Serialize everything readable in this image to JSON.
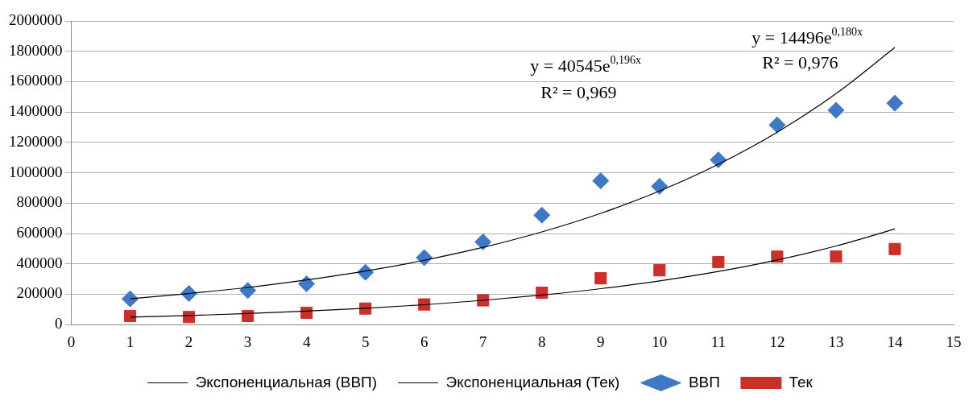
{
  "chart_data": {
    "type": "scatter",
    "x": [
      1,
      2,
      3,
      4,
      5,
      6,
      7,
      8,
      9,
      10,
      11,
      12,
      13,
      14
    ],
    "series": [
      {
        "name": "ВВП",
        "type": "scatter",
        "marker": "diamond",
        "color": "#3f78c4",
        "values": [
          170000,
          205000,
          225000,
          269000,
          345000,
          441000,
          545000,
          721000,
          947000,
          911000,
          1085000,
          1315000,
          1412000,
          1458000
        ]
      },
      {
        "name": "Тек",
        "type": "scatter",
        "marker": "square",
        "color": "#c9302c",
        "values": [
          57000,
          50000,
          57000,
          78000,
          106000,
          133000,
          160000,
          210000,
          305000,
          358000,
          412000,
          448000,
          448000,
          498000
        ]
      },
      {
        "name": "Экспоненциальная (ВВП)",
        "type": "line",
        "marker": "none",
        "color": "#000000",
        "values": [
          170000,
          205000,
          245000,
          295000,
          353000,
          424000,
          509000,
          611000,
          733000,
          880000,
          1056000,
          1267000,
          1521000,
          1825000
        ]
      },
      {
        "name": "Экспоненциальная (Тек)",
        "type": "line",
        "marker": "none",
        "color": "#000000",
        "values": [
          49000,
          60000,
          73000,
          89000,
          108000,
          131000,
          160000,
          195000,
          237000,
          288000,
          350000,
          426000,
          518000,
          630000
        ]
      }
    ],
    "xlim": [
      0,
      15
    ],
    "xticks": [
      0,
      1,
      2,
      3,
      4,
      5,
      6,
      7,
      8,
      9,
      10,
      11,
      12,
      13,
      14,
      15
    ],
    "ylim": [
      0,
      2000000
    ],
    "yticks": [
      0,
      200000,
      400000,
      600000,
      800000,
      1000000,
      1200000,
      1400000,
      1600000,
      1800000,
      2000000
    ],
    "grid": "y",
    "legend": "bottom",
    "annotations": [
      "y = 40545e$^{0,196x}$",
      "R² = 0,969",
      "y = 14496e$^{0,180x}$",
      "R² = 0,976"
    ]
  }
}
